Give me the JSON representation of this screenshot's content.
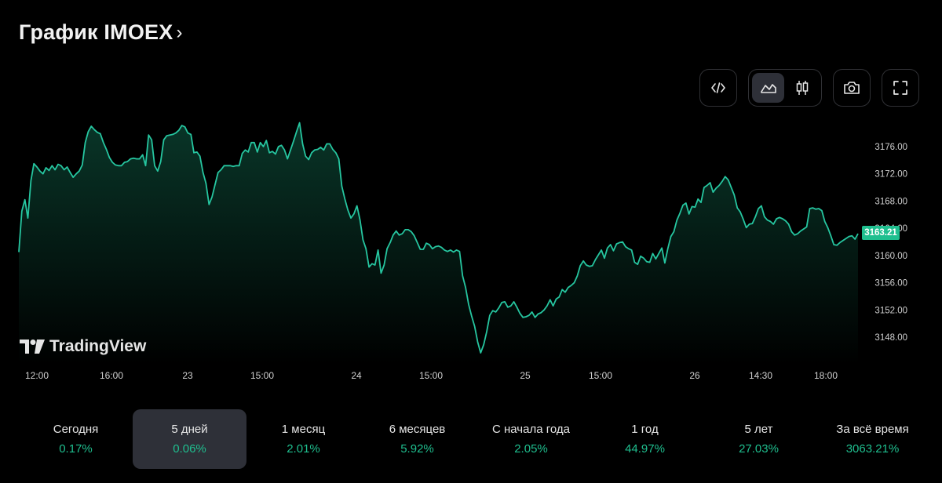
{
  "header": {
    "title": "График IMOEX",
    "chevron": "›"
  },
  "toolbar": {
    "embed_icon": "code-icon",
    "area_icon": "area-chart-icon",
    "candle_icon": "candlestick-icon",
    "camera_icon": "camera-icon",
    "fullscreen_icon": "fullscreen-icon"
  },
  "watermark": {
    "text": "TradingView"
  },
  "colors": {
    "line": "#26c6a0",
    "accent": "#1fbf8f",
    "bg": "#000000"
  },
  "last_price": "3163.21",
  "chart_data": {
    "type": "area",
    "ylim": [
      3145,
      3180
    ],
    "y_ticks": [
      "3176.00",
      "3172.00",
      "3168.00",
      "3164.00",
      "3160.00",
      "3156.00",
      "3152.00",
      "3148.00"
    ],
    "x_ticks": [
      "12:00",
      "16:00",
      "23",
      "15:00",
      "24",
      "15:00",
      "25",
      "15:00",
      "26",
      "14:30",
      "18:00"
    ],
    "grid": false,
    "series": [
      {
        "values": [
          3160.5,
          3166.5,
          3168.2,
          3165.5,
          3171.0,
          3173.5,
          3173.0,
          3172.4,
          3172.0,
          3172.9,
          3172.5,
          3173.2,
          3172.6,
          3173.4,
          3173.2,
          3172.6,
          3173.0,
          3172.2,
          3171.5,
          3172.0,
          3172.4,
          3173.3,
          3176.6,
          3178.2,
          3179.0,
          3178.5,
          3178.1,
          3177.9,
          3176.6,
          3175.6,
          3174.4,
          3173.7,
          3173.3,
          3173.2,
          3173.2,
          3173.7,
          3173.8,
          3174.2,
          3174.3,
          3174.2,
          3174.2,
          3174.8,
          3173.2,
          3177.7,
          3177.0,
          3173.2,
          3172.4,
          3173.8,
          3177.0,
          3177.6,
          3177.7,
          3177.8,
          3178.0,
          3178.4,
          3179.1,
          3178.9,
          3178.0,
          3177.8,
          3175.1,
          3175.2,
          3174.6,
          3172.2,
          3170.6,
          3167.5,
          3168.6,
          3170.4,
          3172.2,
          3172.6,
          3173.2,
          3173.2,
          3173.2,
          3173.1,
          3173.2,
          3173.2,
          3175.0,
          3175.5,
          3175.2,
          3176.6,
          3176.6,
          3175.2,
          3176.6,
          3176.0,
          3176.9,
          3175.1,
          3175.3,
          3174.9,
          3176.0,
          3176.2,
          3175.5,
          3174.2,
          3175.5,
          3176.8,
          3178.2,
          3179.5,
          3176.4,
          3174.6,
          3174.1,
          3175.1,
          3175.5,
          3175.6,
          3175.9,
          3175.5,
          3176.4,
          3176.4,
          3175.6,
          3175.1,
          3174.2,
          3170.2,
          3168.3,
          3166.7,
          3165.5,
          3166.1,
          3167.3,
          3165.3,
          3162.3,
          3161.0,
          3158.3,
          3158.8,
          3158.6,
          3160.8,
          3157.4,
          3158.6,
          3161.0,
          3161.9,
          3163.0,
          3163.6,
          3163.0,
          3163.2,
          3163.8,
          3163.8,
          3163.5,
          3162.9,
          3161.9,
          3160.9,
          3160.9,
          3161.8,
          3161.6,
          3161.0,
          3161.3,
          3161.4,
          3161.2,
          3160.8,
          3160.6,
          3160.8,
          3160.5,
          3160.8,
          3160.6,
          3157.0,
          3155.3,
          3152.8,
          3151.1,
          3149.6,
          3147.3,
          3145.7,
          3146.9,
          3148.8,
          3151.2,
          3151.9,
          3151.7,
          3152.3,
          3153.1,
          3153.2,
          3152.4,
          3152.6,
          3153.2,
          3152.4,
          3151.5,
          3150.9,
          3151.0,
          3151.2,
          3151.7,
          3150.9,
          3151.4,
          3151.6,
          3152.0,
          3152.6,
          3153.5,
          3152.6,
          3153.6,
          3153.9,
          3155.0,
          3154.6,
          3155.3,
          3155.6,
          3156.0,
          3157.0,
          3158.5,
          3159.2,
          3158.6,
          3158.4,
          3158.5,
          3159.4,
          3160.1,
          3160.8,
          3159.6,
          3161.1,
          3161.6,
          3160.7,
          3161.7,
          3161.9,
          3162.0,
          3161.3,
          3161.0,
          3160.8,
          3159.0,
          3158.7,
          3159.9,
          3159.6,
          3159.1,
          3159.0,
          3160.3,
          3159.5,
          3160.3,
          3161.1,
          3158.9,
          3161.0,
          3162.8,
          3163.5,
          3165.2,
          3166.2,
          3167.4,
          3167.7,
          3166.1,
          3167.2,
          3167.1,
          3168.3,
          3167.8,
          3170.0,
          3170.3,
          3170.7,
          3169.3,
          3169.9,
          3170.3,
          3170.9,
          3171.6,
          3171.1,
          3170.0,
          3168.9,
          3167.0,
          3166.4,
          3165.3,
          3164.1,
          3164.6,
          3164.7,
          3165.7,
          3166.9,
          3167.3,
          3165.7,
          3165.2,
          3165.0,
          3164.6,
          3165.4,
          3165.6,
          3165.4,
          3165.1,
          3164.6,
          3163.5,
          3163.0,
          3163.2,
          3163.6,
          3163.9,
          3164.2,
          3166.9,
          3167.0,
          3166.8,
          3166.9,
          3166.6,
          3165.0,
          3164.1,
          3162.9,
          3161.6,
          3161.5,
          3161.9,
          3162.2,
          3162.5,
          3162.8,
          3162.9,
          3162.4,
          3163.21
        ]
      }
    ]
  },
  "periods": [
    {
      "label": "Сегодня",
      "value": "0.17%"
    },
    {
      "label": "5 дней",
      "value": "0.06%"
    },
    {
      "label": "1 месяц",
      "value": "2.01%"
    },
    {
      "label": "6 месяцев",
      "value": "5.92%"
    },
    {
      "label": "С начала года",
      "value": "2.05%"
    },
    {
      "label": "1 год",
      "value": "44.97%"
    },
    {
      "label": "5 лет",
      "value": "27.03%"
    },
    {
      "label": "За всё время",
      "value": "3063.21%"
    }
  ]
}
